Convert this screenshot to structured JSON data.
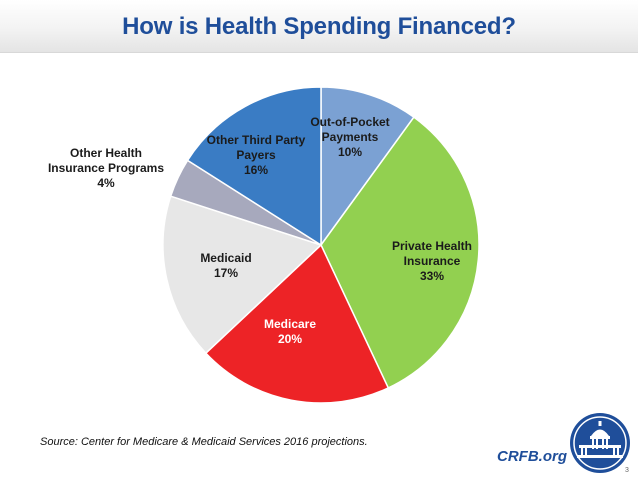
{
  "title": "How is Health Spending Financed?",
  "source_note": "Source: Center for Medicare & Medicaid Services 2016 projections.",
  "brand": "CRFB.org",
  "page_number": "3",
  "colors": {
    "title": "#1f4e9a",
    "brand": "#1f4e9a"
  },
  "chart_data": {
    "type": "pie",
    "title": "How is Health Spending Financed?",
    "start": "12 o'clock, clockwise",
    "slices": [
      {
        "name": "Out-of-Pocket Payments",
        "label_lines": [
          "Out-of-Pocket",
          "Payments"
        ],
        "value": 10,
        "value_label": "10%",
        "color": "#7ba1d3",
        "label_color": "#1b1b1b"
      },
      {
        "name": "Private Health Insurance",
        "label_lines": [
          "Private Health",
          "Insurance"
        ],
        "value": 33,
        "value_label": "33%",
        "color": "#92d050",
        "label_color": "#1b1b1b"
      },
      {
        "name": "Medicare",
        "label_lines": [
          "Medicare"
        ],
        "value": 20,
        "value_label": "20%",
        "color": "#ed2326",
        "label_color": "#ffffff"
      },
      {
        "name": "Medicaid",
        "label_lines": [
          "Medicaid"
        ],
        "value": 17,
        "value_label": "17%",
        "color": "#e7e7e7",
        "label_color": "#1b1b1b"
      },
      {
        "name": "Other Health Insurance Programs",
        "label_lines": [
          "Other Health",
          "Insurance Programs"
        ],
        "value": 4,
        "value_label": "4%",
        "color": "#a7a9bd",
        "label_color": "#1b1b1b"
      },
      {
        "name": "Other Third Party Payers",
        "label_lines": [
          "Other Third Party",
          "Payers"
        ],
        "value": 16,
        "value_label": "16%",
        "color": "#3a7cc4",
        "label_color": "#1b1b1b"
      }
    ]
  }
}
